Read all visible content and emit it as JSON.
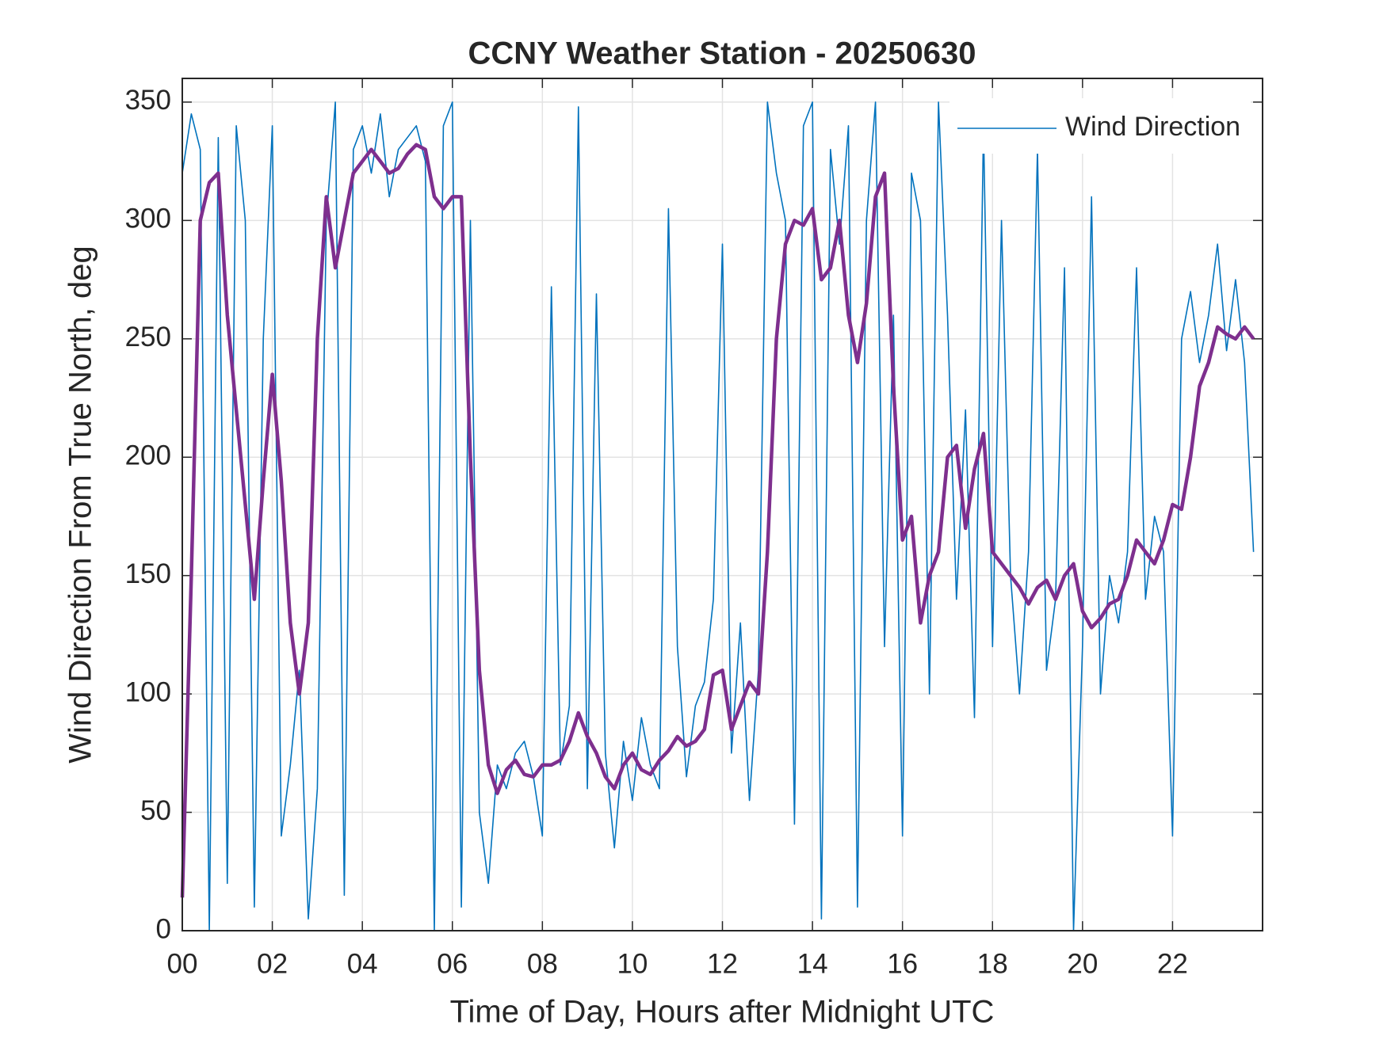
{
  "chart_data": {
    "type": "line",
    "title": "CCNY Weather Station - 20250630",
    "xlabel": "Time of Day, Hours after Midnight UTC",
    "ylabel": "Wind Direction From True North, deg",
    "x": [
      0,
      0.2,
      0.4,
      0.6,
      0.8,
      1,
      1.2,
      1.4,
      1.6,
      1.8,
      2,
      2.2,
      2.4,
      2.6,
      2.8,
      3,
      3.2,
      3.4,
      3.6,
      3.8,
      4,
      4.2,
      4.4,
      4.6,
      4.8,
      5,
      5.2,
      5.4,
      5.6,
      5.8,
      6,
      6.2,
      6.4,
      6.6,
      6.8,
      7,
      7.2,
      7.4,
      7.6,
      7.8,
      8,
      8.2,
      8.4,
      8.6,
      8.8,
      9,
      9.2,
      9.4,
      9.6,
      9.8,
      10,
      10.2,
      10.4,
      10.6,
      10.8,
      11,
      11.2,
      11.4,
      11.6,
      11.8,
      12,
      12.2,
      12.4,
      12.6,
      12.8,
      13,
      13.2,
      13.4,
      13.6,
      13.8,
      14,
      14.2,
      14.4,
      14.6,
      14.8,
      15,
      15.2,
      15.4,
      15.6,
      15.8,
      16,
      16.2,
      16.4,
      16.6,
      16.8,
      17,
      17.2,
      17.4,
      17.6,
      17.8,
      18,
      18.2,
      18.4,
      18.6,
      18.8,
      19,
      19.2,
      19.4,
      19.6,
      19.8,
      20,
      20.2,
      20.4,
      20.6,
      20.8,
      21,
      21.2,
      21.4,
      21.6,
      21.8,
      22,
      22.2,
      22.4,
      22.6,
      22.8,
      23,
      23.2,
      23.4,
      23.6,
      23.8
    ],
    "series": [
      {
        "name": "Wind Direction",
        "color": "#0072bd",
        "width": 1.6,
        "values": [
          320,
          345,
          330,
          0,
          335,
          20,
          340,
          300,
          10,
          250,
          340,
          40,
          70,
          110,
          5,
          60,
          300,
          350,
          15,
          330,
          340,
          320,
          345,
          310,
          330,
          335,
          340,
          325,
          0,
          340,
          350,
          10,
          300,
          50,
          20,
          70,
          60,
          75,
          80,
          65,
          40,
          272,
          70,
          95,
          348,
          60,
          269,
          75,
          35,
          80,
          55,
          90,
          70,
          60,
          305,
          120,
          65,
          95,
          105,
          140,
          290,
          75,
          130,
          55,
          110,
          350,
          320,
          300,
          45,
          340,
          350,
          5,
          330,
          290,
          340,
          10,
          300,
          350,
          120,
          260,
          40,
          320,
          300,
          100,
          350,
          260,
          140,
          220,
          90,
          340,
          120,
          300,
          150,
          100,
          160,
          330,
          110,
          140,
          280,
          0,
          120,
          310,
          100,
          150,
          130,
          160,
          280,
          140,
          175,
          160,
          40,
          250,
          270,
          240,
          260,
          290,
          245,
          275,
          240,
          160
        ]
      },
      {
        "color": "#7e2f8e",
        "width": 4.5,
        "values": [
          14,
          150,
          300,
          316,
          320,
          260,
          220,
          180,
          140,
          190,
          235,
          190,
          130,
          100,
          130,
          250,
          310,
          280,
          300,
          320,
          325,
          330,
          325,
          320,
          322,
          328,
          332,
          330,
          310,
          305,
          310,
          310,
          200,
          110,
          70,
          58,
          68,
          72,
          66,
          65,
          70,
          70,
          72,
          80,
          92,
          82,
          75,
          65,
          60,
          70,
          75,
          68,
          66,
          72,
          76,
          82,
          78,
          80,
          85,
          108,
          110,
          85,
          95,
          105,
          100,
          160,
          250,
          290,
          300,
          298,
          305,
          275,
          280,
          300,
          260,
          240,
          265,
          310,
          320,
          230,
          165,
          175,
          130,
          150,
          160,
          200,
          205,
          170,
          195,
          210,
          160,
          155,
          150,
          145,
          138,
          145,
          148,
          140,
          150,
          155,
          135,
          128,
          132,
          138,
          140,
          150,
          165,
          160,
          155,
          165,
          180,
          178,
          200,
          230,
          240,
          255,
          252,
          250,
          255,
          250
        ]
      }
    ],
    "xlim": [
      0,
      24
    ],
    "ylim": [
      0,
      360
    ],
    "xticks": [
      {
        "value": 0,
        "label": "00"
      },
      {
        "value": 2,
        "label": "02"
      },
      {
        "value": 4,
        "label": "04"
      },
      {
        "value": 6,
        "label": "06"
      },
      {
        "value": 8,
        "label": "08"
      },
      {
        "value": 10,
        "label": "10"
      },
      {
        "value": 12,
        "label": "12"
      },
      {
        "value": 14,
        "label": "14"
      },
      {
        "value": 16,
        "label": "16"
      },
      {
        "value": 18,
        "label": "18"
      },
      {
        "value": 20,
        "label": "20"
      },
      {
        "value": 22,
        "label": "22"
      }
    ],
    "yticks": [
      0,
      50,
      100,
      150,
      200,
      250,
      300,
      350
    ],
    "grid": true,
    "legend": "upper right"
  }
}
